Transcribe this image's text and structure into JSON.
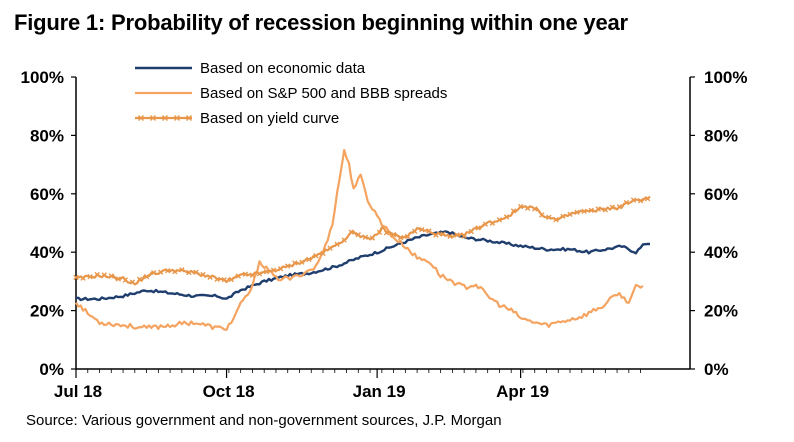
{
  "title": "Figure 1: Probability of recession beginning within one year",
  "source": "Source: Various government and non-government sources, J.P. Morgan",
  "chart_data": {
    "type": "line",
    "x_ticks": [
      "Jul 18",
      "Oct 18",
      "Jan 19",
      "Apr 19"
    ],
    "x_tick_index": [
      0,
      64,
      128,
      189
    ],
    "n_points": 245,
    "y_ticks": [
      "0%",
      "20%",
      "40%",
      "60%",
      "80%",
      "100%"
    ],
    "ylim": [
      0,
      100
    ],
    "legend_position": "top-center",
    "series": [
      {
        "name": "Based on economic data",
        "color": "#1F3E6E",
        "marker": "none",
        "knots": [
          [
            0,
            24
          ],
          [
            10,
            24
          ],
          [
            20,
            25
          ],
          [
            30,
            27
          ],
          [
            40,
            26
          ],
          [
            50,
            25
          ],
          [
            60,
            25
          ],
          [
            64,
            24
          ],
          [
            70,
            27
          ],
          [
            80,
            30
          ],
          [
            90,
            32
          ],
          [
            100,
            33
          ],
          [
            110,
            35
          ],
          [
            120,
            38
          ],
          [
            128,
            40
          ],
          [
            138,
            43
          ],
          [
            145,
            45
          ],
          [
            150,
            46
          ],
          [
            158,
            47
          ],
          [
            165,
            45
          ],
          [
            175,
            44
          ],
          [
            190,
            42
          ],
          [
            200,
            41
          ],
          [
            210,
            41
          ],
          [
            218,
            40
          ],
          [
            225,
            41
          ],
          [
            232,
            42
          ],
          [
            238,
            40
          ],
          [
            242,
            43
          ],
          [
            244,
            43
          ]
        ]
      },
      {
        "name": "Based on S&P 500 and BBB spreads",
        "color": "#F4A460",
        "marker": "none",
        "knots": [
          [
            0,
            23
          ],
          [
            5,
            19
          ],
          [
            10,
            16
          ],
          [
            20,
            15
          ],
          [
            30,
            14
          ],
          [
            40,
            15
          ],
          [
            50,
            16
          ],
          [
            60,
            14
          ],
          [
            64,
            14
          ],
          [
            66,
            16
          ],
          [
            70,
            22
          ],
          [
            75,
            28
          ],
          [
            78,
            37
          ],
          [
            85,
            31
          ],
          [
            92,
            31
          ],
          [
            97,
            33
          ],
          [
            102,
            35
          ],
          [
            106,
            42
          ],
          [
            109,
            50
          ],
          [
            112,
            65
          ],
          [
            114,
            75
          ],
          [
            116,
            70
          ],
          [
            118,
            62
          ],
          [
            121,
            66
          ],
          [
            124,
            58
          ],
          [
            126,
            55
          ],
          [
            130,
            50
          ],
          [
            135,
            45
          ],
          [
            140,
            42
          ],
          [
            145,
            38
          ],
          [
            150,
            37
          ],
          [
            155,
            32
          ],
          [
            160,
            30
          ],
          [
            165,
            28
          ],
          [
            170,
            29
          ],
          [
            175,
            25
          ],
          [
            180,
            22
          ],
          [
            185,
            20
          ],
          [
            190,
            17
          ],
          [
            195,
            16
          ],
          [
            200,
            15
          ],
          [
            205,
            16
          ],
          [
            210,
            17
          ],
          [
            215,
            18
          ],
          [
            220,
            20
          ],
          [
            225,
            22
          ],
          [
            230,
            26
          ],
          [
            235,
            23
          ],
          [
            238,
            28
          ],
          [
            241,
            28
          ]
        ]
      },
      {
        "name": "Based on yield curve",
        "color": "#E8964A",
        "marker": "x",
        "knots": [
          [
            0,
            31
          ],
          [
            10,
            32
          ],
          [
            20,
            31
          ],
          [
            25,
            29
          ],
          [
            30,
            32
          ],
          [
            40,
            34
          ],
          [
            50,
            33
          ],
          [
            60,
            31
          ],
          [
            64,
            30
          ],
          [
            70,
            32
          ],
          [
            80,
            33
          ],
          [
            90,
            35
          ],
          [
            100,
            38
          ],
          [
            110,
            42
          ],
          [
            118,
            47
          ],
          [
            125,
            44
          ],
          [
            130,
            48
          ],
          [
            135,
            46
          ],
          [
            140,
            45
          ],
          [
            145,
            48
          ],
          [
            155,
            46
          ],
          [
            160,
            45
          ],
          [
            165,
            46
          ],
          [
            170,
            48
          ],
          [
            175,
            50
          ],
          [
            180,
            51
          ],
          [
            185,
            53
          ],
          [
            190,
            56
          ],
          [
            195,
            55
          ],
          [
            200,
            52
          ],
          [
            205,
            51
          ],
          [
            210,
            53
          ],
          [
            215,
            54
          ],
          [
            220,
            54
          ],
          [
            225,
            55
          ],
          [
            230,
            55
          ],
          [
            235,
            57
          ],
          [
            240,
            58
          ],
          [
            244,
            59
          ]
        ]
      }
    ]
  }
}
